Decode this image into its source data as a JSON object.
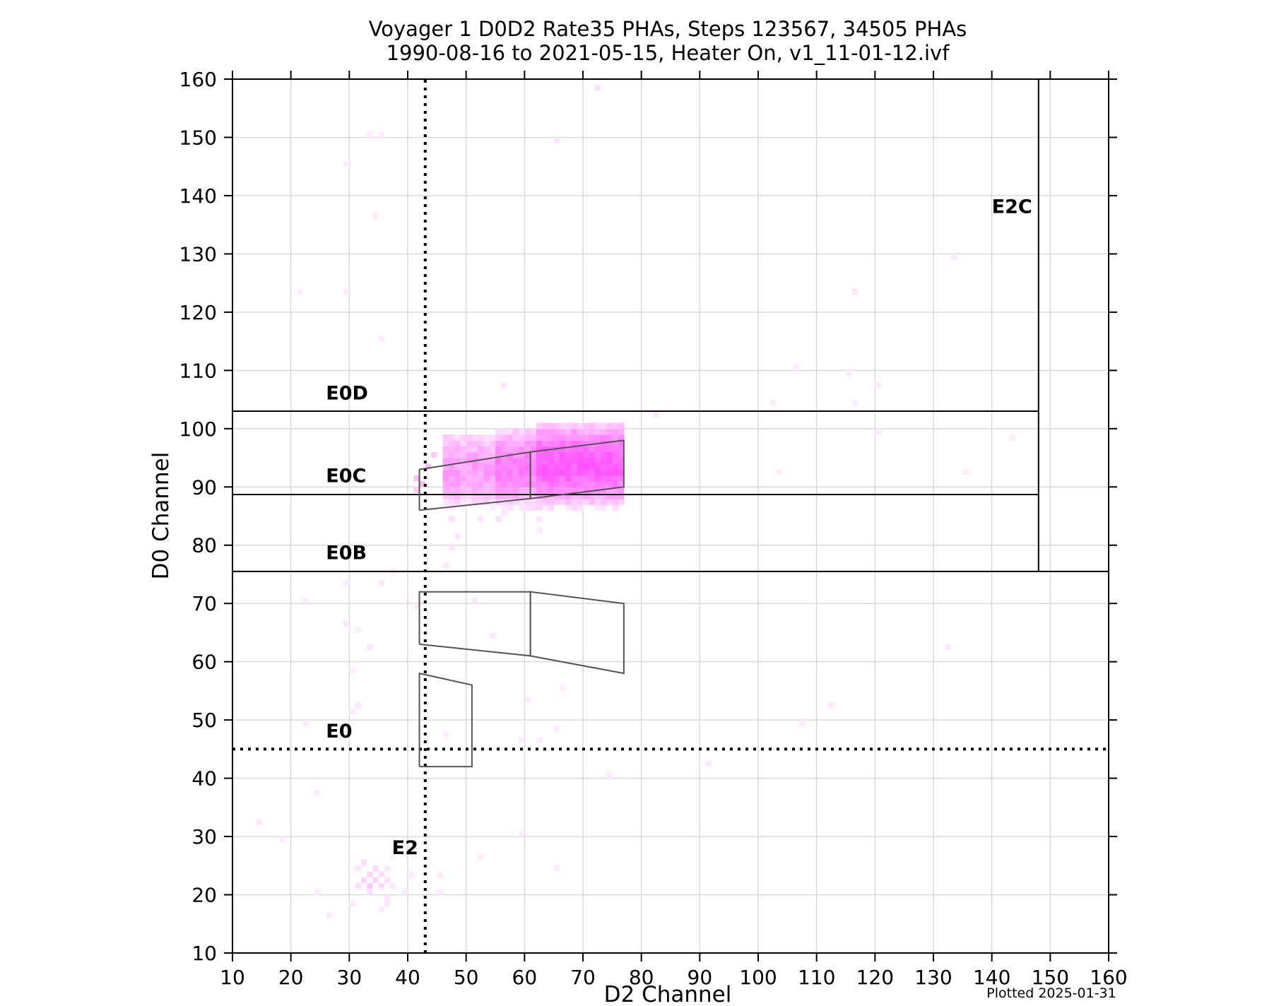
{
  "chart_data": {
    "type": "heatmap",
    "title_line1": "Voyager 1 D0D2 Rate35 PHAs, Steps 123567, 34505 PHAs",
    "title_line2": "1990-08-16 to 2021-05-15, Heater On, v1_11-01-12.ivf",
    "xlabel": "D2 Channel",
    "ylabel": "D0 Channel",
    "xlim": [
      10,
      160
    ],
    "ylim": [
      10,
      160
    ],
    "xticks": [
      10,
      20,
      30,
      40,
      50,
      60,
      70,
      80,
      90,
      100,
      110,
      120,
      130,
      140,
      150,
      160
    ],
    "yticks": [
      10,
      20,
      30,
      40,
      50,
      60,
      70,
      80,
      90,
      100,
      110,
      120,
      130,
      140,
      150,
      160
    ],
    "grid": true,
    "colormap": [
      "#ffffff",
      "#ff2bff"
    ],
    "line_color": "#000000",
    "box_color": "#555555",
    "footnote": "Plotted 2025-01-31",
    "heat_regions": [
      {
        "x": [
          46,
          55
        ],
        "y": [
          86,
          99
        ],
        "intensity": 0.45
      },
      {
        "x": [
          55,
          62
        ],
        "y": [
          86,
          100
        ],
        "intensity": 0.6
      },
      {
        "x": [
          62,
          77
        ],
        "y": [
          86,
          101
        ],
        "intensity": 0.75
      }
    ],
    "heat_points": [
      [
        72,
        158,
        0.15
      ],
      [
        65,
        149,
        0.12
      ],
      [
        33,
        150,
        0.1
      ],
      [
        35,
        150,
        0.1
      ],
      [
        29,
        145,
        0.1
      ],
      [
        34,
        136,
        0.12
      ],
      [
        133,
        129,
        0.12
      ],
      [
        21,
        123,
        0.1
      ],
      [
        29,
        123,
        0.1
      ],
      [
        116,
        123,
        0.12
      ],
      [
        35,
        115,
        0.1
      ],
      [
        106,
        110,
        0.1
      ],
      [
        115,
        109,
        0.1
      ],
      [
        120,
        107,
        0.1
      ],
      [
        56,
        107,
        0.12
      ],
      [
        102,
        104,
        0.1
      ],
      [
        116,
        104,
        0.1
      ],
      [
        120,
        99,
        0.1
      ],
      [
        143,
        98,
        0.1
      ],
      [
        103,
        92,
        0.1
      ],
      [
        135,
        92,
        0.1
      ],
      [
        82,
        102,
        0.12
      ],
      [
        41,
        91,
        0.3
      ],
      [
        42,
        90,
        0.35
      ],
      [
        41,
        89,
        0.25
      ],
      [
        44,
        95,
        0.25
      ],
      [
        43,
        93,
        0.3
      ],
      [
        47,
        84,
        0.15
      ],
      [
        52,
        84,
        0.12
      ],
      [
        55,
        84,
        0.15
      ],
      [
        56,
        85,
        0.12
      ],
      [
        62,
        84,
        0.12
      ],
      [
        62,
        82,
        0.1
      ],
      [
        48,
        81,
        0.12
      ],
      [
        47,
        79,
        0.1
      ],
      [
        46,
        76,
        0.12
      ],
      [
        37,
        75,
        0.1
      ],
      [
        29,
        73,
        0.1
      ],
      [
        35,
        73,
        0.12
      ],
      [
        22,
        70,
        0.1
      ],
      [
        51,
        70,
        0.12
      ],
      [
        41,
        69,
        0.1
      ],
      [
        29,
        66,
        0.12
      ],
      [
        31,
        65,
        0.1
      ],
      [
        54,
        64,
        0.12
      ],
      [
        33,
        62,
        0.12
      ],
      [
        132,
        62,
        0.12
      ],
      [
        30,
        58,
        0.1
      ],
      [
        66,
        55,
        0.1
      ],
      [
        60,
        53,
        0.1
      ],
      [
        31,
        52,
        0.12
      ],
      [
        30,
        51,
        0.1
      ],
      [
        112,
        52,
        0.12
      ],
      [
        22,
        49,
        0.1
      ],
      [
        107,
        49,
        0.1
      ],
      [
        65,
        48,
        0.1
      ],
      [
        46,
        47,
        0.1
      ],
      [
        59,
        46,
        0.12
      ],
      [
        62,
        46,
        0.1
      ],
      [
        91,
        42,
        0.12
      ],
      [
        74,
        40,
        0.1
      ],
      [
        24,
        37,
        0.1
      ],
      [
        14,
        32,
        0.12
      ],
      [
        18,
        29,
        0.1
      ],
      [
        59,
        30,
        0.1
      ],
      [
        52,
        26,
        0.1
      ],
      [
        31,
        24,
        0.12
      ],
      [
        32,
        25,
        0.15
      ],
      [
        33,
        23,
        0.2
      ],
      [
        34,
        24,
        0.18
      ],
      [
        35,
        23,
        0.15
      ],
      [
        36,
        24,
        0.12
      ],
      [
        32,
        22,
        0.2
      ],
      [
        33,
        21,
        0.25
      ],
      [
        34,
        22,
        0.2
      ],
      [
        35,
        21,
        0.18
      ],
      [
        36,
        22,
        0.15
      ],
      [
        37,
        21,
        0.12
      ],
      [
        31,
        21,
        0.15
      ],
      [
        33,
        20,
        0.15
      ],
      [
        36,
        19,
        0.12
      ],
      [
        30,
        18,
        0.1
      ],
      [
        36,
        18,
        0.12
      ],
      [
        39,
        20,
        0.1
      ],
      [
        40,
        23,
        0.1
      ],
      [
        45,
        23,
        0.1
      ],
      [
        45,
        20,
        0.1
      ],
      [
        24,
        20,
        0.1
      ],
      [
        26,
        16,
        0.1
      ],
      [
        35,
        17,
        0.1
      ],
      [
        65,
        24,
        0.1
      ]
    ],
    "solid_lines": [
      {
        "x": [
          10,
          148
        ],
        "y": [
          103,
          103
        ]
      },
      {
        "x": [
          10,
          148
        ],
        "y": [
          88.7,
          88.7
        ]
      },
      {
        "x": [
          10,
          160
        ],
        "y": [
          75.5,
          75.5
        ]
      },
      {
        "x": [
          148,
          148
        ],
        "y": [
          75.5,
          160
        ]
      }
    ],
    "dotted_lines": [
      {
        "x": [
          43,
          43
        ],
        "y": [
          10,
          160
        ]
      },
      {
        "x": [
          10,
          160
        ],
        "y": [
          45,
          45
        ]
      }
    ],
    "boxes": [
      [
        [
          42,
          86
        ],
        [
          42,
          93
        ],
        [
          61,
          96
        ],
        [
          61,
          88
        ],
        [
          42,
          86
        ]
      ],
      [
        [
          61,
          88
        ],
        [
          61,
          96
        ],
        [
          77,
          98
        ],
        [
          77,
          90
        ],
        [
          61,
          88
        ]
      ],
      [
        [
          42,
          63
        ],
        [
          42,
          72
        ],
        [
          61,
          72
        ],
        [
          61,
          61
        ],
        [
          42,
          63
        ]
      ],
      [
        [
          61,
          61
        ],
        [
          61,
          72
        ],
        [
          77,
          70
        ],
        [
          77,
          58
        ],
        [
          61,
          61
        ]
      ],
      [
        [
          42,
          42
        ],
        [
          42,
          58
        ],
        [
          51,
          56
        ],
        [
          51,
          42
        ],
        [
          42,
          42
        ]
      ]
    ],
    "region_labels": [
      {
        "text": "E0D",
        "x": 26,
        "y": 105
      },
      {
        "text": "E0C",
        "x": 26,
        "y": 90.8
      },
      {
        "text": "E0B",
        "x": 26,
        "y": 77.6
      },
      {
        "text": "E0",
        "x": 26,
        "y": 47
      },
      {
        "text": "E2",
        "x": 37.3,
        "y": 27
      },
      {
        "text": "E2C",
        "x": 140,
        "y": 137
      }
    ]
  }
}
